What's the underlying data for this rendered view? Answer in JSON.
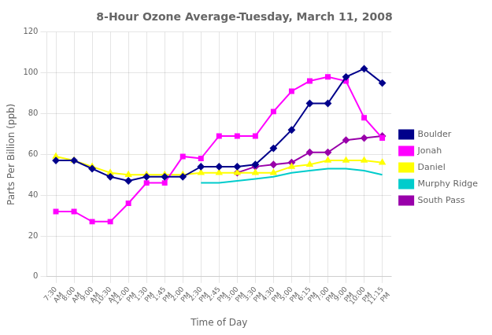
{
  "chart_data": {
    "type": "line",
    "title": "8-Hour Ozone Average-Tuesday, March 11, 2008",
    "x_label": "Time of Day",
    "y_label": "Parts Per Billion (ppb)",
    "categories": [
      "7:30\nAM",
      "8:00\nAM",
      "9:00\nAM",
      "10:30\nAM",
      "12:00\nPM",
      "1:30\nPM",
      "1:45\nPM",
      "2:00\nPM",
      "2:30\nPM",
      "2:45\nPM",
      "3:00\nPM",
      "3:30\nPM",
      "4:30\nPM",
      "5:00\nPM",
      "6:15\nPM",
      "7:00\nPM",
      "9:00\nPM",
      "10:00\nPM",
      "11:15\nPM"
    ],
    "series": [
      {
        "name": "Boulder",
        "color": "#00008B",
        "marker": "diamond",
        "values": [
          57,
          57,
          53,
          49,
          47,
          49,
          49,
          49,
          54,
          54,
          54,
          55,
          63,
          72,
          85,
          85,
          98,
          102,
          95
        ]
      },
      {
        "name": "Jonah",
        "color": "#FF00FF",
        "marker": "square",
        "values": [
          32,
          32,
          27,
          27,
          36,
          46,
          46,
          59,
          58,
          69,
          69,
          69,
          81,
          91,
          96,
          98,
          96,
          78,
          68
        ]
      },
      {
        "name": "Daniel",
        "color": "#FFFF00",
        "marker": "triangle",
        "values": [
          59,
          57,
          54,
          51,
          50,
          50,
          50,
          50,
          51,
          51,
          51,
          51,
          51,
          54,
          55,
          57,
          57,
          57,
          56
        ]
      },
      {
        "name": "Murphy Ridge",
        "color": "#00CCCC",
        "marker": "none",
        "values": [
          null,
          null,
          null,
          null,
          null,
          null,
          null,
          null,
          46,
          46,
          47,
          48,
          49,
          51,
          52,
          53,
          53,
          52,
          50
        ]
      },
      {
        "name": "South Pass",
        "color": "#9900AA",
        "marker": "diamond",
        "values": [
          null,
          null,
          null,
          null,
          null,
          null,
          null,
          null,
          null,
          null,
          51,
          54,
          55,
          56,
          61,
          61,
          67,
          68,
          69
        ]
      }
    ],
    "ylim": [
      0,
      120
    ],
    "yticks": [
      0,
      20,
      40,
      60,
      80,
      100,
      120
    ],
    "grid": true,
    "legend": "right"
  }
}
